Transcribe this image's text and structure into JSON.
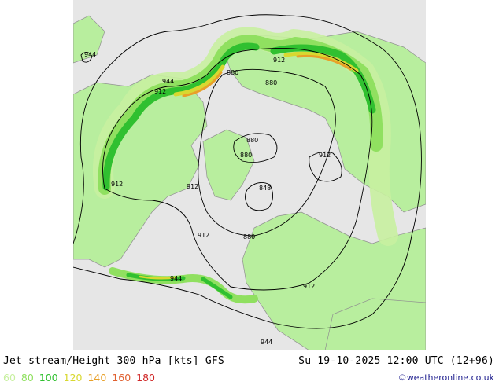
{
  "title": "Jet stream/Height 300 hPa [kts] GFS",
  "valid_time": "Su 19-10-2025 12:00 UTC (12+96)",
  "credit": "©weatheronline.co.uk",
  "legend": [
    {
      "label": "60",
      "color": "#c8f0a0"
    },
    {
      "label": "80",
      "color": "#90e060"
    },
    {
      "label": "100",
      "color": "#30c030"
    },
    {
      "label": "120",
      "color": "#d8d830"
    },
    {
      "label": "140",
      "color": "#e8a028"
    },
    {
      "label": "160",
      "color": "#e06030"
    },
    {
      "label": "180",
      "color": "#d02828"
    }
  ],
  "contour_labels": [
    {
      "text": "944"
    },
    {
      "text": "944"
    },
    {
      "text": "912"
    },
    {
      "text": "880"
    },
    {
      "text": "912"
    },
    {
      "text": "880"
    },
    {
      "text": "880"
    },
    {
      "text": "880"
    },
    {
      "text": "912"
    },
    {
      "text": "912"
    },
    {
      "text": "912"
    },
    {
      "text": "848"
    },
    {
      "text": "912"
    },
    {
      "text": "880"
    },
    {
      "text": "944"
    },
    {
      "text": "912"
    },
    {
      "text": "944"
    }
  ],
  "map": {
    "land_color": "#b4f0a0",
    "sea_color": "#e6e6e6",
    "coast_color": "#909090"
  }
}
